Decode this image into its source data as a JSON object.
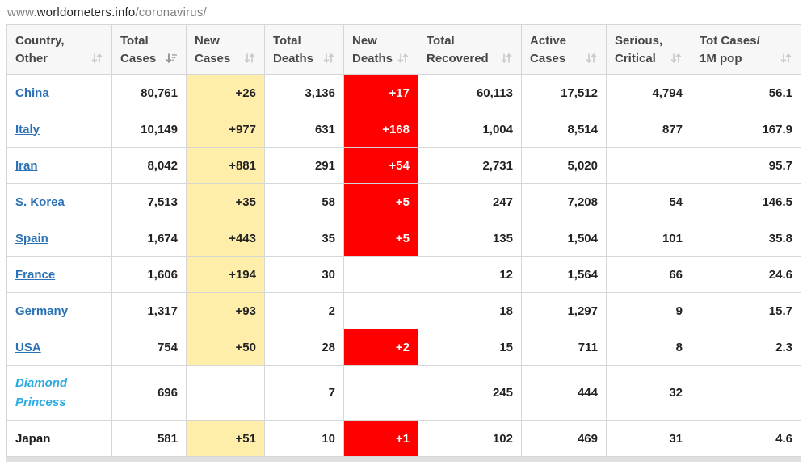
{
  "url": {
    "prefix": "www.",
    "domain": "worldometers.info",
    "path": "/coronavirus/"
  },
  "colors": {
    "new_cases_bg": "#FFEEAA",
    "new_deaths_bg": "#FF0000",
    "new_deaths_text": "#FFFFFF",
    "country_link": "#2A72B5",
    "ship_link": "#29ABE2"
  },
  "table": {
    "columns": [
      {
        "field": "country",
        "line1": "Country,",
        "line2": "Other",
        "sort": "both"
      },
      {
        "field": "total_cases",
        "line1": "Total",
        "line2": "Cases",
        "sort": "desc"
      },
      {
        "field": "new_cases",
        "line1": "New",
        "line2": "Cases",
        "sort": "both"
      },
      {
        "field": "total_deaths",
        "line1": "Total",
        "line2": "Deaths",
        "sort": "both"
      },
      {
        "field": "new_deaths",
        "line1": "New",
        "line2": "Deaths",
        "sort": "both"
      },
      {
        "field": "total_recovered",
        "line1": "Total",
        "line2": "Recovered",
        "sort": "both"
      },
      {
        "field": "active_cases",
        "line1": "Active",
        "line2": "Cases",
        "sort": "both"
      },
      {
        "field": "serious_critical",
        "line1": "Serious,",
        "line2": "Critical",
        "sort": "both"
      },
      {
        "field": "cases_per_1m",
        "line1": "Tot Cases/",
        "line2": "1M pop",
        "sort": "both"
      }
    ],
    "rows": [
      {
        "country": "China",
        "style": "link",
        "total_cases": "80,761",
        "new_cases": "+26",
        "total_deaths": "3,136",
        "new_deaths": "+17",
        "total_recovered": "60,113",
        "active_cases": "17,512",
        "serious_critical": "4,794",
        "cases_per_1m": "56.1"
      },
      {
        "country": "Italy",
        "style": "link",
        "total_cases": "10,149",
        "new_cases": "+977",
        "total_deaths": "631",
        "new_deaths": "+168",
        "total_recovered": "1,004",
        "active_cases": "8,514",
        "serious_critical": "877",
        "cases_per_1m": "167.9"
      },
      {
        "country": "Iran",
        "style": "link",
        "total_cases": "8,042",
        "new_cases": "+881",
        "total_deaths": "291",
        "new_deaths": "+54",
        "total_recovered": "2,731",
        "active_cases": "5,020",
        "serious_critical": "",
        "cases_per_1m": "95.7"
      },
      {
        "country": "S. Korea",
        "style": "link",
        "total_cases": "7,513",
        "new_cases": "+35",
        "total_deaths": "58",
        "new_deaths": "+5",
        "total_recovered": "247",
        "active_cases": "7,208",
        "serious_critical": "54",
        "cases_per_1m": "146.5"
      },
      {
        "country": "Spain",
        "style": "link",
        "total_cases": "1,674",
        "new_cases": "+443",
        "total_deaths": "35",
        "new_deaths": "+5",
        "total_recovered": "135",
        "active_cases": "1,504",
        "serious_critical": "101",
        "cases_per_1m": "35.8"
      },
      {
        "country": "France",
        "style": "link",
        "total_cases": "1,606",
        "new_cases": "+194",
        "total_deaths": "30",
        "new_deaths": "",
        "total_recovered": "12",
        "active_cases": "1,564",
        "serious_critical": "66",
        "cases_per_1m": "24.6"
      },
      {
        "country": "Germany",
        "style": "link",
        "total_cases": "1,317",
        "new_cases": "+93",
        "total_deaths": "2",
        "new_deaths": "",
        "total_recovered": "18",
        "active_cases": "1,297",
        "serious_critical": "9",
        "cases_per_1m": "15.7"
      },
      {
        "country": "USA",
        "style": "link",
        "total_cases": "754",
        "new_cases": "+50",
        "total_deaths": "28",
        "new_deaths": "+2",
        "total_recovered": "15",
        "active_cases": "711",
        "serious_critical": "8",
        "cases_per_1m": "2.3"
      },
      {
        "country": "Diamond Princess",
        "style": "ship",
        "total_cases": "696",
        "new_cases": "",
        "total_deaths": "7",
        "new_deaths": "",
        "total_recovered": "245",
        "active_cases": "444",
        "serious_critical": "32",
        "cases_per_1m": ""
      },
      {
        "country": "Japan",
        "style": "plain",
        "total_cases": "581",
        "new_cases": "+51",
        "total_deaths": "10",
        "new_deaths": "+1",
        "total_recovered": "102",
        "active_cases": "469",
        "serious_critical": "31",
        "cases_per_1m": "4.6"
      }
    ]
  }
}
